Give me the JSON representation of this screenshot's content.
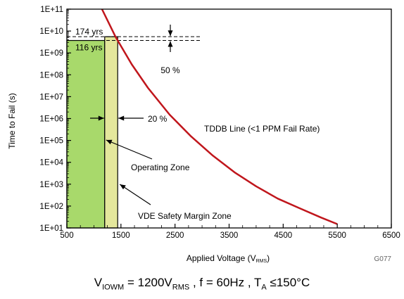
{
  "chart_data": {
    "type": "line",
    "x_axis": {
      "label_main": "Applied Voltage (V",
      "label_sub": "RMS",
      "label_end": ")",
      "min": 500,
      "max": 6500,
      "ticks": [
        500,
        1500,
        2500,
        3500,
        4500,
        5500,
        6500
      ],
      "tick_labels": [
        "500",
        "1500",
        "2500",
        "3500",
        "4500",
        "5500",
        "6500"
      ]
    },
    "y_axis": {
      "label": "Time to Fail (s)",
      "scale": "log",
      "min": 10.0,
      "max": 100000000000.0,
      "tick_labels": [
        "1E+11",
        "1E+10",
        "1E+09",
        "1E+08",
        "1E+07",
        "1E+06",
        "1E+05",
        "1E+04",
        "1E+03",
        "1E+02",
        "1E+01"
      ]
    },
    "series": [
      {
        "name": "TDDB Line (<1 PPM Fail Rate)",
        "color": "#c0161c",
        "x": [
          1150,
          1400,
          1700,
          2000,
          2400,
          2800,
          3200,
          3600,
          4000,
          4400,
          4800,
          5200,
          5500
        ],
        "y": [
          100000000000.0,
          5500000000.0,
          300000000.0,
          25000000.0,
          1500000.0,
          150000.0,
          20000.0,
          3500.0,
          800,
          220,
          80,
          30,
          15
        ]
      }
    ],
    "regions": [
      {
        "name": "Operating Zone",
        "x_start": 500,
        "x_end": 1200,
        "y_top": 3700000000.0,
        "color": "#a8d96b"
      },
      {
        "name": "VDE Safety Margin Zone",
        "x_start": 1200,
        "x_end": 1440,
        "y_top": 5500000000.0,
        "color": "#e4e79c"
      }
    ],
    "reference_lines": [
      {
        "label": "174 yrs",
        "y": 5500000000.0
      },
      {
        "label": "116 yrs",
        "y": 3700000000.0
      }
    ],
    "annotations": {
      "tddb": "TDDB Line (<1 PPM Fail Rate)",
      "operating": "Operating Zone",
      "vde": "VDE Safety Margin Zone",
      "pct50": "50 %",
      "pct20": "20 %",
      "fig_id": "G077"
    },
    "grid": false,
    "legend": "none"
  },
  "caption": {
    "p1": "V",
    "p1_sub": "IOWM",
    "p2": " = 1200V",
    "p2_sub": "RMS",
    "p3": " , f = 60Hz , T",
    "p3_sub": "A",
    "p4": " ≤150°C"
  }
}
